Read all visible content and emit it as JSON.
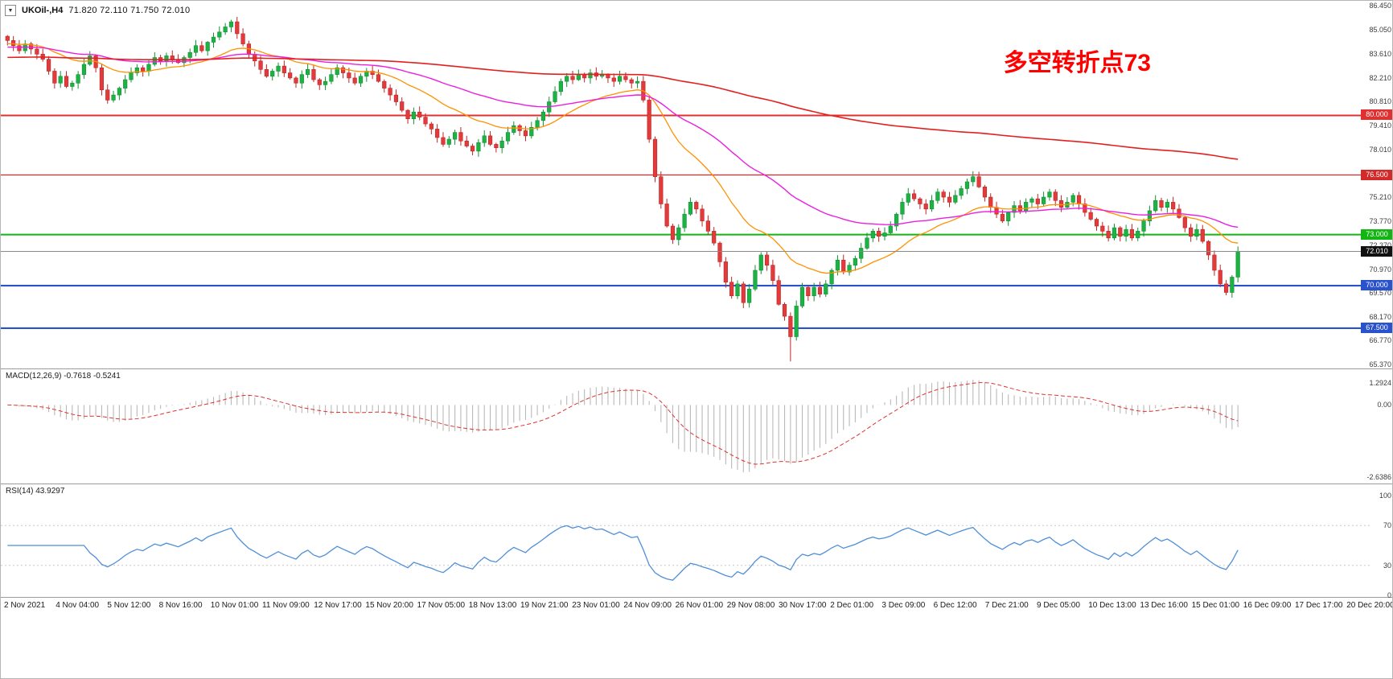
{
  "header": {
    "dropdown_icon": "▼",
    "symbol_period": "UKOil-,H4",
    "ohlc_text": "71.820 72.110 71.750 72.010"
  },
  "annotation": {
    "text": "多空转折点73",
    "color": "#ff0000"
  },
  "price_axis": {
    "ticks": [
      {
        "label": "86.450",
        "price": 86.45
      },
      {
        "label": "85.050",
        "price": 85.05
      },
      {
        "label": "83.610",
        "price": 83.61
      },
      {
        "label": "82.210",
        "price": 82.21
      },
      {
        "label": "80.810",
        "price": 80.81
      },
      {
        "label": "79.410",
        "price": 79.41
      },
      {
        "label": "78.010",
        "price": 78.01
      },
      {
        "label": "75.210",
        "price": 75.21
      },
      {
        "label": "73.770",
        "price": 73.77
      },
      {
        "label": "72.370",
        "price": 72.37
      },
      {
        "label": "70.970",
        "price": 70.97
      },
      {
        "label": "69.570",
        "price": 69.57
      },
      {
        "label": "68.170",
        "price": 68.17
      },
      {
        "label": "66.770",
        "price": 66.77
      },
      {
        "label": "65.370",
        "price": 65.37
      }
    ]
  },
  "macd_panel": {
    "label": "MACD(12,26,9) -0.7618 -0.5241",
    "axis_top": "1.2924",
    "axis_zero": "0.00",
    "axis_bottom": "-2.6386"
  },
  "rsi_panel": {
    "label": "RSI(14) 43.9297",
    "axis": [
      {
        "label": "100",
        "value": 100
      },
      {
        "label": "70",
        "value": 70
      },
      {
        "label": "30",
        "value": 30
      },
      {
        "label": "0",
        "value": 0
      }
    ],
    "levels": [
      70,
      30
    ]
  },
  "time_axis": {
    "labels": [
      "2 Nov 2021",
      "4 Nov 04:00",
      "5 Nov 12:00",
      "8 Nov 16:00",
      "10 Nov 01:00",
      "11 Nov 09:00",
      "12 Nov 17:00",
      "15 Nov 20:00",
      "17 Nov 05:00",
      "18 Nov 13:00",
      "19 Nov 21:00",
      "23 Nov 01:00",
      "24 Nov 09:00",
      "26 Nov 01:00",
      "29 Nov 08:00",
      "30 Nov 17:00",
      "2 Dec 01:00",
      "3 Dec 09:00",
      "6 Dec 12:00",
      "7 Dec 21:00",
      "9 Dec 05:00",
      "10 Dec 13:00",
      "13 Dec 16:00",
      "15 Dec 01:00",
      "16 Dec 09:00",
      "17 Dec 17:00",
      "20 Dec 20:00"
    ]
  },
  "chart_data": {
    "type": "candlestick",
    "symbol": "UKOil-",
    "timeframe": "H4",
    "current_candle": {
      "open": 71.82,
      "high": 72.11,
      "low": 71.75,
      "close": 72.01
    },
    "price_range": [
      65.37,
      86.45
    ],
    "first_open": 84.65,
    "closes": [
      84.4,
      84.1,
      83.8,
      84.2,
      83.9,
      83.6,
      83.3,
      82.6,
      81.9,
      82.3,
      81.7,
      81.9,
      82.4,
      83.0,
      83.5,
      82.8,
      81.5,
      80.9,
      81.2,
      81.6,
      82.1,
      82.5,
      82.8,
      82.6,
      83.0,
      83.4,
      83.2,
      83.5,
      83.3,
      83.1,
      83.4,
      83.7,
      84.1,
      83.8,
      84.3,
      84.6,
      84.9,
      85.2,
      85.5,
      84.8,
      84.2,
      83.6,
      83.2,
      82.7,
      82.3,
      82.6,
      82.9,
      82.5,
      82.2,
      81.9,
      82.4,
      82.7,
      82.1,
      81.8,
      82.0,
      82.4,
      82.8,
      82.5,
      82.2,
      81.9,
      82.3,
      82.6,
      82.4,
      82.0,
      81.6,
      81.2,
      80.8,
      80.3,
      79.8,
      80.2,
      79.9,
      79.5,
      79.2,
      78.7,
      78.3,
      78.6,
      79.0,
      78.5,
      78.2,
      77.9,
      78.4,
      78.8,
      78.3,
      78.1,
      78.5,
      79.0,
      79.4,
      79.1,
      78.8,
      79.3,
      79.7,
      80.2,
      80.8,
      81.4,
      82.0,
      82.3,
      82.1,
      82.4,
      82.2,
      82.5,
      82.3,
      82.4,
      82.2,
      82.0,
      82.3,
      82.1,
      81.9,
      82.0,
      80.9,
      78.6,
      76.4,
      74.8,
      73.5,
      72.7,
      73.4,
      74.2,
      74.9,
      74.5,
      73.8,
      73.2,
      72.5,
      71.4,
      70.2,
      69.4,
      70.1,
      69.0,
      69.8,
      70.9,
      71.8,
      71.2,
      70.3,
      68.9,
      68.2,
      67.0,
      68.8,
      69.9,
      69.4,
      69.9,
      69.5,
      70.1,
      70.9,
      71.5,
      70.8,
      71.2,
      71.6,
      72.2,
      72.8,
      73.2,
      72.9,
      73.1,
      73.5,
      74.2,
      74.9,
      75.4,
      75.1,
      74.8,
      74.5,
      75.0,
      75.5,
      75.2,
      74.9,
      75.3,
      75.7,
      76.1,
      76.4,
      75.8,
      75.2,
      74.6,
      74.2,
      73.8,
      74.3,
      74.7,
      74.4,
      74.9,
      75.1,
      74.8,
      75.2,
      75.5,
      75.0,
      74.6,
      74.9,
      75.3,
      74.8,
      74.3,
      73.9,
      73.5,
      73.2,
      72.8,
      73.4,
      72.9,
      73.3,
      72.8,
      73.2,
      73.8,
      74.4,
      75.0,
      74.6,
      74.9,
      74.5,
      74.0,
      73.4,
      72.9,
      73.3,
      72.6,
      71.8,
      70.9,
      70.1,
      69.6,
      70.5,
      72.01
    ],
    "spike_lows": {
      "133": 65.55
    },
    "h_lines": [
      {
        "price": 80.0,
        "label": "80.000",
        "color": "#e03030",
        "width": 2
      },
      {
        "price": 76.5,
        "label": "76.500",
        "color": "#d22a2a",
        "width": 1.3
      },
      {
        "price": 73.0,
        "label": "73.000",
        "color": "#12b512",
        "width": 2
      },
      {
        "price": 72.01,
        "label": "72.010",
        "color": "#8a8a8a",
        "width": 1,
        "style": "current",
        "badge": "#111111"
      },
      {
        "price": 70.0,
        "label": "70.000",
        "color": "#2a52cc",
        "width": 2.2
      },
      {
        "price": 67.5,
        "label": "67.500",
        "color": "#2a52cc",
        "width": 2.2
      }
    ],
    "moving_averages": [
      {
        "name": "fast-ma",
        "period": 21,
        "seed": 84.2,
        "color": "#ff9100",
        "width": 1.3
      },
      {
        "name": "mid-ma",
        "period": 55,
        "seed": 84.0,
        "color": "#ea1fe0",
        "width": 1.4
      },
      {
        "name": "slow-ma",
        "period": 260,
        "seed": 83.4,
        "color": "#e32020",
        "width": 1.6
      }
    ],
    "macd": {
      "fast": 12,
      "slow": 26,
      "signal": 9,
      "last_macd": -0.7618,
      "last_signal": -0.5241,
      "hist_color": "#b9b9b9",
      "signal_color": "#e03030",
      "range": [
        -2.6386,
        1.2924
      ]
    },
    "rsi": {
      "period": 14,
      "last": 43.9297,
      "color": "#4f8fd8",
      "range": [
        0,
        100
      ]
    },
    "candle_colors": {
      "up": "#1cb244",
      "up_border": "#149035",
      "down": "#e13b3b",
      "down_border": "#c02525"
    }
  }
}
